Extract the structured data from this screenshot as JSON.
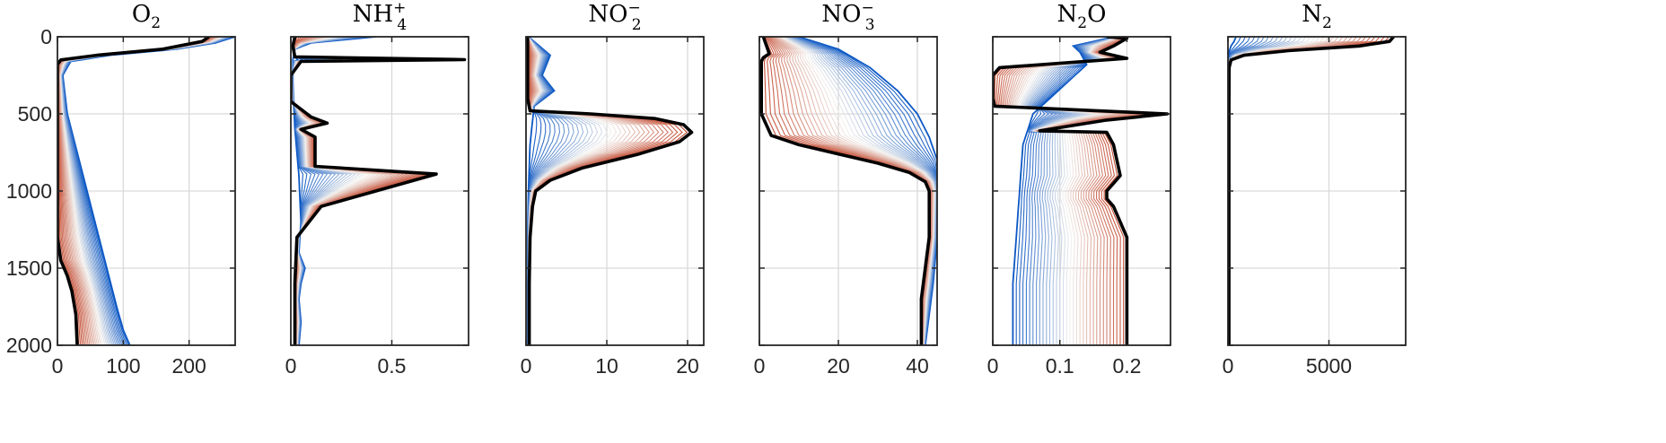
{
  "figure": {
    "colors": {
      "early": "#0b57c4",
      "middle": "#f2f0ed",
      "late": "#c2452a",
      "final_profile": "#000000",
      "grid": "#d9d9d9"
    }
  },
  "chart_data": [
    {
      "type": "line",
      "title": "O",
      "title_sub": "2",
      "title_sup": "",
      "title_tail": "",
      "xlim": [
        0,
        270
      ],
      "ylim": [
        2000,
        0
      ],
      "xticks": [
        0,
        100,
        200
      ],
      "xtick_labels": [
        "0",
        "100",
        "200"
      ],
      "yticks": [
        0,
        500,
        1000,
        1500,
        2000
      ],
      "ytick_labels": [
        "0",
        "500",
        "1000",
        "1500",
        "2000"
      ],
      "grid": true,
      "series": [
        {
          "role": "first",
          "x": [
            270,
            255,
            240,
            180,
            80,
            20,
            8,
            15,
            30,
            45,
            60,
            75,
            90,
            100,
            110
          ],
          "y": [
            0,
            20,
            40,
            80,
            120,
            160,
            250,
            500,
            750,
            1000,
            1250,
            1500,
            1750,
            1900,
            2000
          ]
        },
        {
          "role": "final",
          "x": [
            230,
            220,
            160,
            60,
            5,
            0,
            0,
            0,
            0,
            5,
            15,
            22,
            28,
            30
          ],
          "y": [
            0,
            30,
            80,
            120,
            150,
            180,
            500,
            920,
            1300,
            1450,
            1550,
            1650,
            1800,
            2000
          ]
        }
      ]
    },
    {
      "type": "line",
      "title": "NH",
      "title_sub": "4",
      "title_sup": "+",
      "title_tail": "",
      "xlim": [
        0,
        0.88
      ],
      "ylim": [
        2000,
        0
      ],
      "xticks": [
        0,
        0.5
      ],
      "xtick_labels": [
        "0",
        "0.5"
      ],
      "yticks": [
        0,
        500,
        1000,
        1500,
        2000
      ],
      "ytick_labels": [
        "",
        "",
        "",
        "",
        ""
      ],
      "grid": true,
      "series": [
        {
          "role": "first",
          "x": [
            0.42,
            0.1,
            0.02,
            0.01,
            0.01,
            0.02,
            0.04,
            0.05,
            0.04,
            0.07,
            0.05,
            0.04,
            0.05,
            0.04
          ],
          "y": [
            0,
            40,
            80,
            150,
            300,
            600,
            900,
            1200,
            1400,
            1500,
            1600,
            1700,
            1850,
            2000
          ]
        },
        {
          "role": "final",
          "x": [
            0.02,
            0.01,
            0.02,
            0.86,
            0.05,
            0.0,
            0.0,
            0.1,
            0.18,
            0.05,
            0.12,
            0.12,
            0.72,
            0.15,
            0.03,
            0.02,
            0.02
          ],
          "y": [
            0,
            60,
            130,
            148,
            160,
            250,
            420,
            520,
            560,
            600,
            650,
            840,
            890,
            1100,
            1300,
            1600,
            2000
          ]
        }
      ]
    },
    {
      "type": "line",
      "title": "NO",
      "title_sub": "2",
      "title_sup": "−",
      "title_tail": "",
      "xlim": [
        0,
        22
      ],
      "ylim": [
        2000,
        0
      ],
      "xticks": [
        0,
        10,
        20
      ],
      "xtick_labels": [
        "0",
        "10",
        "20"
      ],
      "yticks": [
        0,
        500,
        1000,
        1500,
        2000
      ],
      "ytick_labels": [
        "",
        "",
        "",
        "",
        ""
      ],
      "grid": true,
      "series": [
        {
          "role": "first",
          "x": [
            0.3,
            3.0,
            2.0,
            3.5,
            1.0,
            0.5,
            0.3,
            0.2,
            0.2,
            0.2
          ],
          "y": [
            0,
            120,
            250,
            350,
            450,
            700,
            1000,
            1300,
            1600,
            2000
          ]
        },
        {
          "role": "final",
          "x": [
            0.2,
            0.2,
            0.2,
            0.5,
            8,
            16,
            19.5,
            20.5,
            19,
            14,
            7,
            3,
            1.2,
            0.8,
            0.5,
            0.4,
            0.4
          ],
          "y": [
            0,
            200,
            400,
            480,
            500,
            530,
            570,
            620,
            680,
            760,
            850,
            930,
            1000,
            1100,
            1300,
            1600,
            2000
          ]
        }
      ]
    },
    {
      "type": "line",
      "title": "NO",
      "title_sub": "3",
      "title_sup": "−",
      "title_tail": "",
      "xlim": [
        0,
        45
      ],
      "ylim": [
        2000,
        0
      ],
      "xticks": [
        0,
        20,
        40
      ],
      "xtick_labels": [
        "0",
        "20",
        "40"
      ],
      "yticks": [
        0,
        500,
        1000,
        1500,
        2000
      ],
      "ytick_labels": [
        "",
        "",
        "",
        "",
        ""
      ],
      "grid": true,
      "series": [
        {
          "role": "first",
          "x": [
            10,
            20,
            28,
            35,
            40,
            43,
            45,
            45.5,
            45,
            44,
            43,
            42
          ],
          "y": [
            0,
            80,
            200,
            350,
            500,
            650,
            800,
            1000,
            1300,
            1600,
            1800,
            2000
          ]
        },
        {
          "role": "final",
          "x": [
            1.0,
            2.5,
            1.0,
            0.5,
            0.5,
            0.5,
            3,
            10,
            20,
            30,
            38,
            42,
            43,
            43,
            42,
            41,
            41,
            41
          ],
          "y": [
            0,
            110,
            135,
            160,
            300,
            500,
            640,
            700,
            760,
            820,
            880,
            940,
            1000,
            1300,
            1500,
            1700,
            1850,
            2000
          ]
        }
      ]
    },
    {
      "type": "line",
      "title": "N",
      "title_sub": "2",
      "title_sup": "",
      "title_tail": "O",
      "xlim": [
        0,
        0.265
      ],
      "ylim": [
        2000,
        0
      ],
      "xticks": [
        0,
        0.1,
        0.2
      ],
      "xtick_labels": [
        "0",
        "0.1",
        "0.2"
      ],
      "yticks": [
        0,
        500,
        1000,
        1500,
        2000
      ],
      "ytick_labels": [
        "",
        "",
        "",
        "",
        ""
      ],
      "grid": true,
      "series": [
        {
          "role": "first",
          "x": [
            0.18,
            0.15,
            0.12,
            0.13,
            0.14,
            0.06,
            0.045,
            0.04,
            0.035,
            0.03,
            0.03
          ],
          "y": [
            0,
            30,
            60,
            100,
            180,
            500,
            700,
            1000,
            1300,
            1600,
            2000
          ]
        },
        {
          "role": "final",
          "x": [
            0.17,
            0.2,
            0.18,
            0.16,
            0.2,
            0.01,
            0.0,
            0.0,
            0.003,
            0.26,
            0.17,
            0.07,
            0.17,
            0.18,
            0.19,
            0.18,
            0.17,
            0.17,
            0.18,
            0.2,
            0.2,
            0.2,
            0.2
          ],
          "y": [
            0,
            10,
            60,
            100,
            140,
            200,
            250,
            400,
            450,
            500,
            540,
            610,
            620,
            700,
            900,
            950,
            1000,
            1050,
            1100,
            1300,
            1500,
            1800,
            2000
          ]
        }
      ]
    },
    {
      "type": "line",
      "title": "N",
      "title_sub": "2",
      "title_sup": "",
      "title_tail": "",
      "xlim": [
        0,
        8800
      ],
      "ylim": [
        2000,
        0
      ],
      "xticks": [
        0,
        5000
      ],
      "xtick_labels": [
        "0",
        "5000"
      ],
      "yticks": [
        0,
        500,
        1000,
        1500,
        2000
      ],
      "ytick_labels": [
        "",
        "",
        "",
        "",
        ""
      ],
      "grid": true,
      "series": [
        {
          "role": "first",
          "x": [
            400,
            300,
            150,
            50,
            20,
            10,
            10,
            10
          ],
          "y": [
            0,
            30,
            60,
            100,
            150,
            500,
            1000,
            2000
          ]
        },
        {
          "role": "final",
          "x": [
            8200,
            8000,
            6500,
            3000,
            800,
            150,
            60,
            50,
            50,
            50
          ],
          "y": [
            0,
            30,
            60,
            90,
            120,
            150,
            200,
            500,
            1000,
            2000
          ]
        }
      ]
    }
  ]
}
